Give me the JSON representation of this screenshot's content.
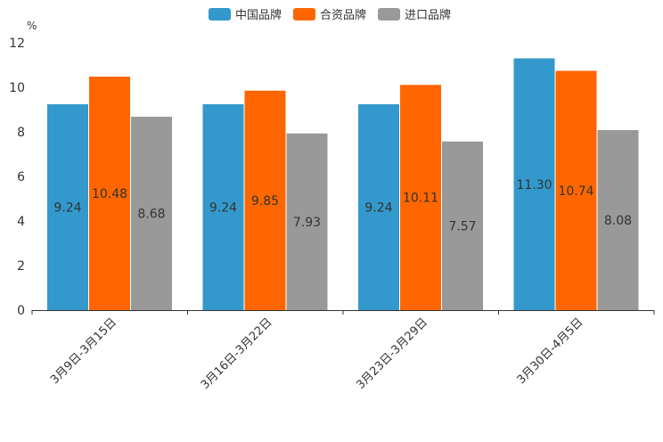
{
  "chart_data": {
    "type": "bar",
    "unit": "%",
    "categories": [
      "3月9日-3月15日",
      "3月16日-3月22日",
      "3月23日-3月29日",
      "3月30日-4月5日"
    ],
    "series": [
      {
        "name": "中国品牌",
        "color": "#3399CC",
        "values": [
          9.24,
          9.24,
          9.24,
          11.3
        ],
        "labels": [
          "9.24",
          "9.24",
          "9.24",
          "11.30"
        ]
      },
      {
        "name": "合资品牌",
        "color": "#FF6600",
        "values": [
          10.48,
          9.85,
          10.11,
          10.74
        ],
        "labels": [
          "10.48",
          "9.85",
          "10.11",
          "10.74"
        ]
      },
      {
        "name": "进口品牌",
        "color": "#999999",
        "values": [
          8.68,
          7.93,
          7.57,
          8.08
        ],
        "labels": [
          "8.68",
          "7.93",
          "7.57",
          "8.08"
        ]
      }
    ],
    "y_ticks": [
      "0",
      "2",
      "4",
      "6",
      "8",
      "10",
      "12"
    ],
    "ylim": [
      0,
      12
    ],
    "legend_position": "top-center",
    "grid": false
  }
}
